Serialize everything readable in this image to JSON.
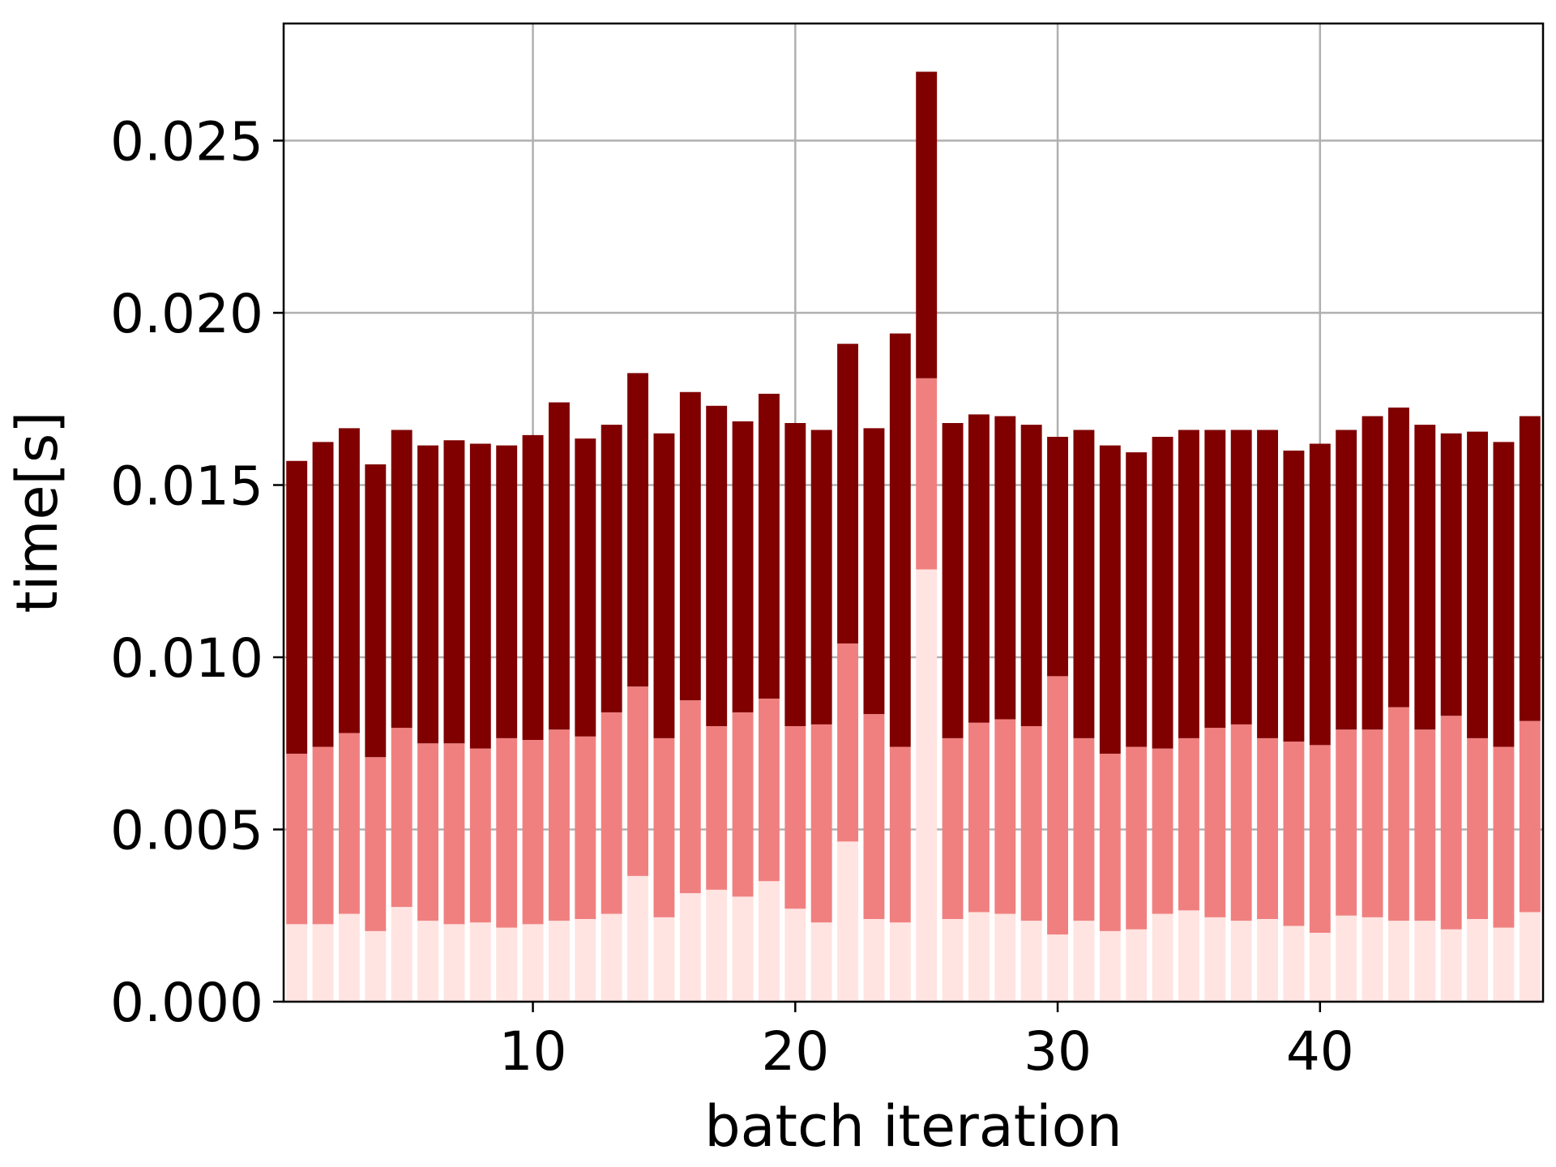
{
  "chart_data": {
    "type": "bar",
    "stacked": true,
    "title": "",
    "xlabel": "batch iteration",
    "ylabel": "time[s]",
    "xlim": [
      0.5,
      48.5
    ],
    "ylim": [
      0,
      0.0284
    ],
    "grid": true,
    "xticks": [
      10,
      20,
      30,
      40
    ],
    "yticks": [
      0.0,
      0.005,
      0.01,
      0.015,
      0.02,
      0.025
    ],
    "ytick_labels": [
      "0.000",
      "0.005",
      "0.010",
      "0.015",
      "0.020",
      "0.025"
    ],
    "xtick_labels": [
      "10",
      "20",
      "30",
      "40"
    ],
    "colors": [
      "#ffe4e1",
      "#f08080",
      "#800000"
    ],
    "x": [
      1,
      2,
      3,
      4,
      5,
      6,
      7,
      8,
      9,
      10,
      11,
      12,
      13,
      14,
      15,
      16,
      17,
      18,
      19,
      20,
      21,
      22,
      23,
      24,
      25,
      26,
      27,
      28,
      29,
      30,
      31,
      32,
      33,
      34,
      35,
      36,
      37,
      38,
      39,
      40,
      41,
      42,
      43,
      44,
      45,
      46,
      47,
      48
    ],
    "series": [
      {
        "values": [
          0.00225,
          0.00225,
          0.00255,
          0.00205,
          0.00275,
          0.00235,
          0.00225,
          0.0023,
          0.00215,
          0.00225,
          0.00235,
          0.0024,
          0.00255,
          0.00365,
          0.00245,
          0.00315,
          0.00325,
          0.00305,
          0.0035,
          0.0027,
          0.0023,
          0.00465,
          0.0024,
          0.0023,
          0.01255,
          0.0024,
          0.0026,
          0.00255,
          0.00235,
          0.00195,
          0.00235,
          0.00205,
          0.0021,
          0.00255,
          0.00265,
          0.00245,
          0.00235,
          0.0024,
          0.0022,
          0.002,
          0.0025,
          0.00245,
          0.00235,
          0.00235,
          0.0021,
          0.0024,
          0.00215,
          0.0026
        ]
      },
      {
        "values": [
          0.00495,
          0.00515,
          0.00525,
          0.00505,
          0.0052,
          0.00515,
          0.00525,
          0.00505,
          0.0055,
          0.00535,
          0.00555,
          0.0053,
          0.00585,
          0.0055,
          0.0052,
          0.0056,
          0.00475,
          0.00535,
          0.0053,
          0.0053,
          0.00575,
          0.00575,
          0.00595,
          0.0051,
          0.00555,
          0.00525,
          0.0055,
          0.00565,
          0.00565,
          0.0075,
          0.0053,
          0.00515,
          0.0053,
          0.0048,
          0.005,
          0.0055,
          0.0057,
          0.00525,
          0.00535,
          0.00545,
          0.0054,
          0.00545,
          0.0062,
          0.00555,
          0.0062,
          0.00525,
          0.00525,
          0.00555
        ]
      },
      {
        "values": [
          0.0085,
          0.00885,
          0.00885,
          0.0085,
          0.00865,
          0.00865,
          0.0088,
          0.00885,
          0.0085,
          0.00885,
          0.0095,
          0.00865,
          0.00835,
          0.0091,
          0.00885,
          0.00895,
          0.0093,
          0.00845,
          0.00885,
          0.0088,
          0.00855,
          0.0087,
          0.0083,
          0.012,
          0.0089,
          0.00915,
          0.00895,
          0.0088,
          0.00875,
          0.00695,
          0.00895,
          0.00895,
          0.00855,
          0.00905,
          0.00895,
          0.00865,
          0.00855,
          0.00895,
          0.00845,
          0.00875,
          0.0087,
          0.0091,
          0.0087,
          0.00885,
          0.0082,
          0.0089,
          0.00885,
          0.00885
        ]
      }
    ]
  }
}
